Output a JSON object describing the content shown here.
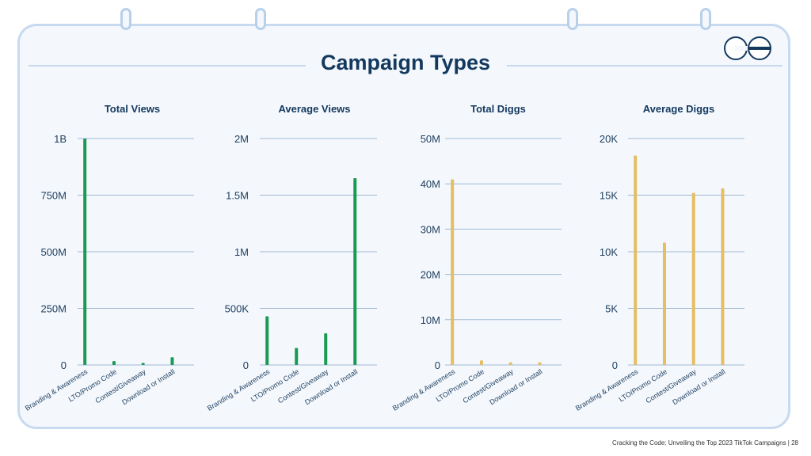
{
  "page": {
    "title": "Campaign Types",
    "footer": "Cracking the Code: Unveiling the Top 2023 TikTok Campaigns | 28",
    "logo_icon": "go-logo-icon",
    "colors": {
      "title": "#14395e",
      "axis_text": "#1c3d5e",
      "grid": "#9fb7d2",
      "green": "#3df23a",
      "dark_green": "#1a9a52",
      "gold": "#e6be62"
    }
  },
  "chart_data": [
    {
      "type": "bar",
      "title": "Total Views",
      "categories": [
        "Branding & Awareness",
        "LTO/Promo Code",
        "Contest/Giveaway",
        "Download or Install"
      ],
      "values": [
        1000000000,
        17000000,
        9000000,
        34000000
      ],
      "bar_colors": [
        "dark_green",
        "dark_green",
        "dark_green",
        "dark_green"
      ],
      "ylim": [
        0,
        1000000000
      ],
      "yticks": [
        0,
        250000000,
        500000000,
        750000000,
        1000000000
      ],
      "ytick_labels": [
        "0",
        "250M",
        "500M",
        "750M",
        "1B"
      ],
      "grid": true
    },
    {
      "type": "bar",
      "title": "Average Views",
      "categories": [
        "Branding & Awareness",
        "LTO/Promo Code",
        "Contest/Giveaway",
        "Download or Install"
      ],
      "values": [
        430000,
        150000,
        280000,
        1650000
      ],
      "bar_colors": [
        "dark_green",
        "dark_green",
        "dark_green",
        "dark_green"
      ],
      "ylim": [
        0,
        2000000
      ],
      "yticks": [
        0,
        500000,
        1000000,
        1500000,
        2000000
      ],
      "ytick_labels": [
        "0",
        "500K",
        "1M",
        "1.5M",
        "2M"
      ],
      "grid": true
    },
    {
      "type": "bar",
      "title": "Total Diggs",
      "categories": [
        "Branding & Awareness",
        "LTO/Promo Code",
        "Contest/Giveaway",
        "Download or Install"
      ],
      "values": [
        41000000,
        1000000,
        600000,
        600000
      ],
      "bar_colors": [
        "gold",
        "gold",
        "gold",
        "gold"
      ],
      "ylim": [
        0,
        50000000
      ],
      "yticks": [
        0,
        10000000,
        20000000,
        30000000,
        40000000,
        50000000
      ],
      "ytick_labels": [
        "0",
        "10M",
        "20M",
        "30M",
        "40M",
        "50M"
      ],
      "grid": true
    },
    {
      "type": "bar",
      "title": "Average Diggs",
      "categories": [
        "Branding & Awareness",
        "LTO/Promo Code",
        "Contest/Giveaway",
        "Download or Install"
      ],
      "values": [
        18500,
        10800,
        15200,
        15600
      ],
      "bar_colors": [
        "gold",
        "gold",
        "gold",
        "gold"
      ],
      "ylim": [
        0,
        20000
      ],
      "yticks": [
        0,
        5000,
        10000,
        15000,
        20000
      ],
      "ytick_labels": [
        "0",
        "5K",
        "10K",
        "15K",
        "20K"
      ],
      "grid": true
    }
  ]
}
